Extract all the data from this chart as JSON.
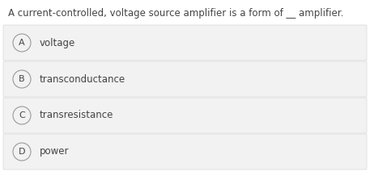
{
  "question": "A current-controlled, voltage source amplifier is a form of __ amplifier.",
  "options": [
    {
      "label": "A",
      "text": "voltage"
    },
    {
      "label": "B",
      "text": "transconductance"
    },
    {
      "label": "C",
      "text": "transresistance"
    },
    {
      "label": "D",
      "text": "power"
    }
  ],
  "bg_color": "#ffffff",
  "option_bg_color": "#f2f2f2",
  "option_border_color": "#d8d8d8",
  "text_color": "#444444",
  "circle_edge_color": "#999999",
  "question_fontsize": 8.5,
  "option_fontsize": 8.5,
  "label_fontsize": 8.0,
  "fig_width": 4.57,
  "fig_height": 2.23,
  "dpi": 100
}
